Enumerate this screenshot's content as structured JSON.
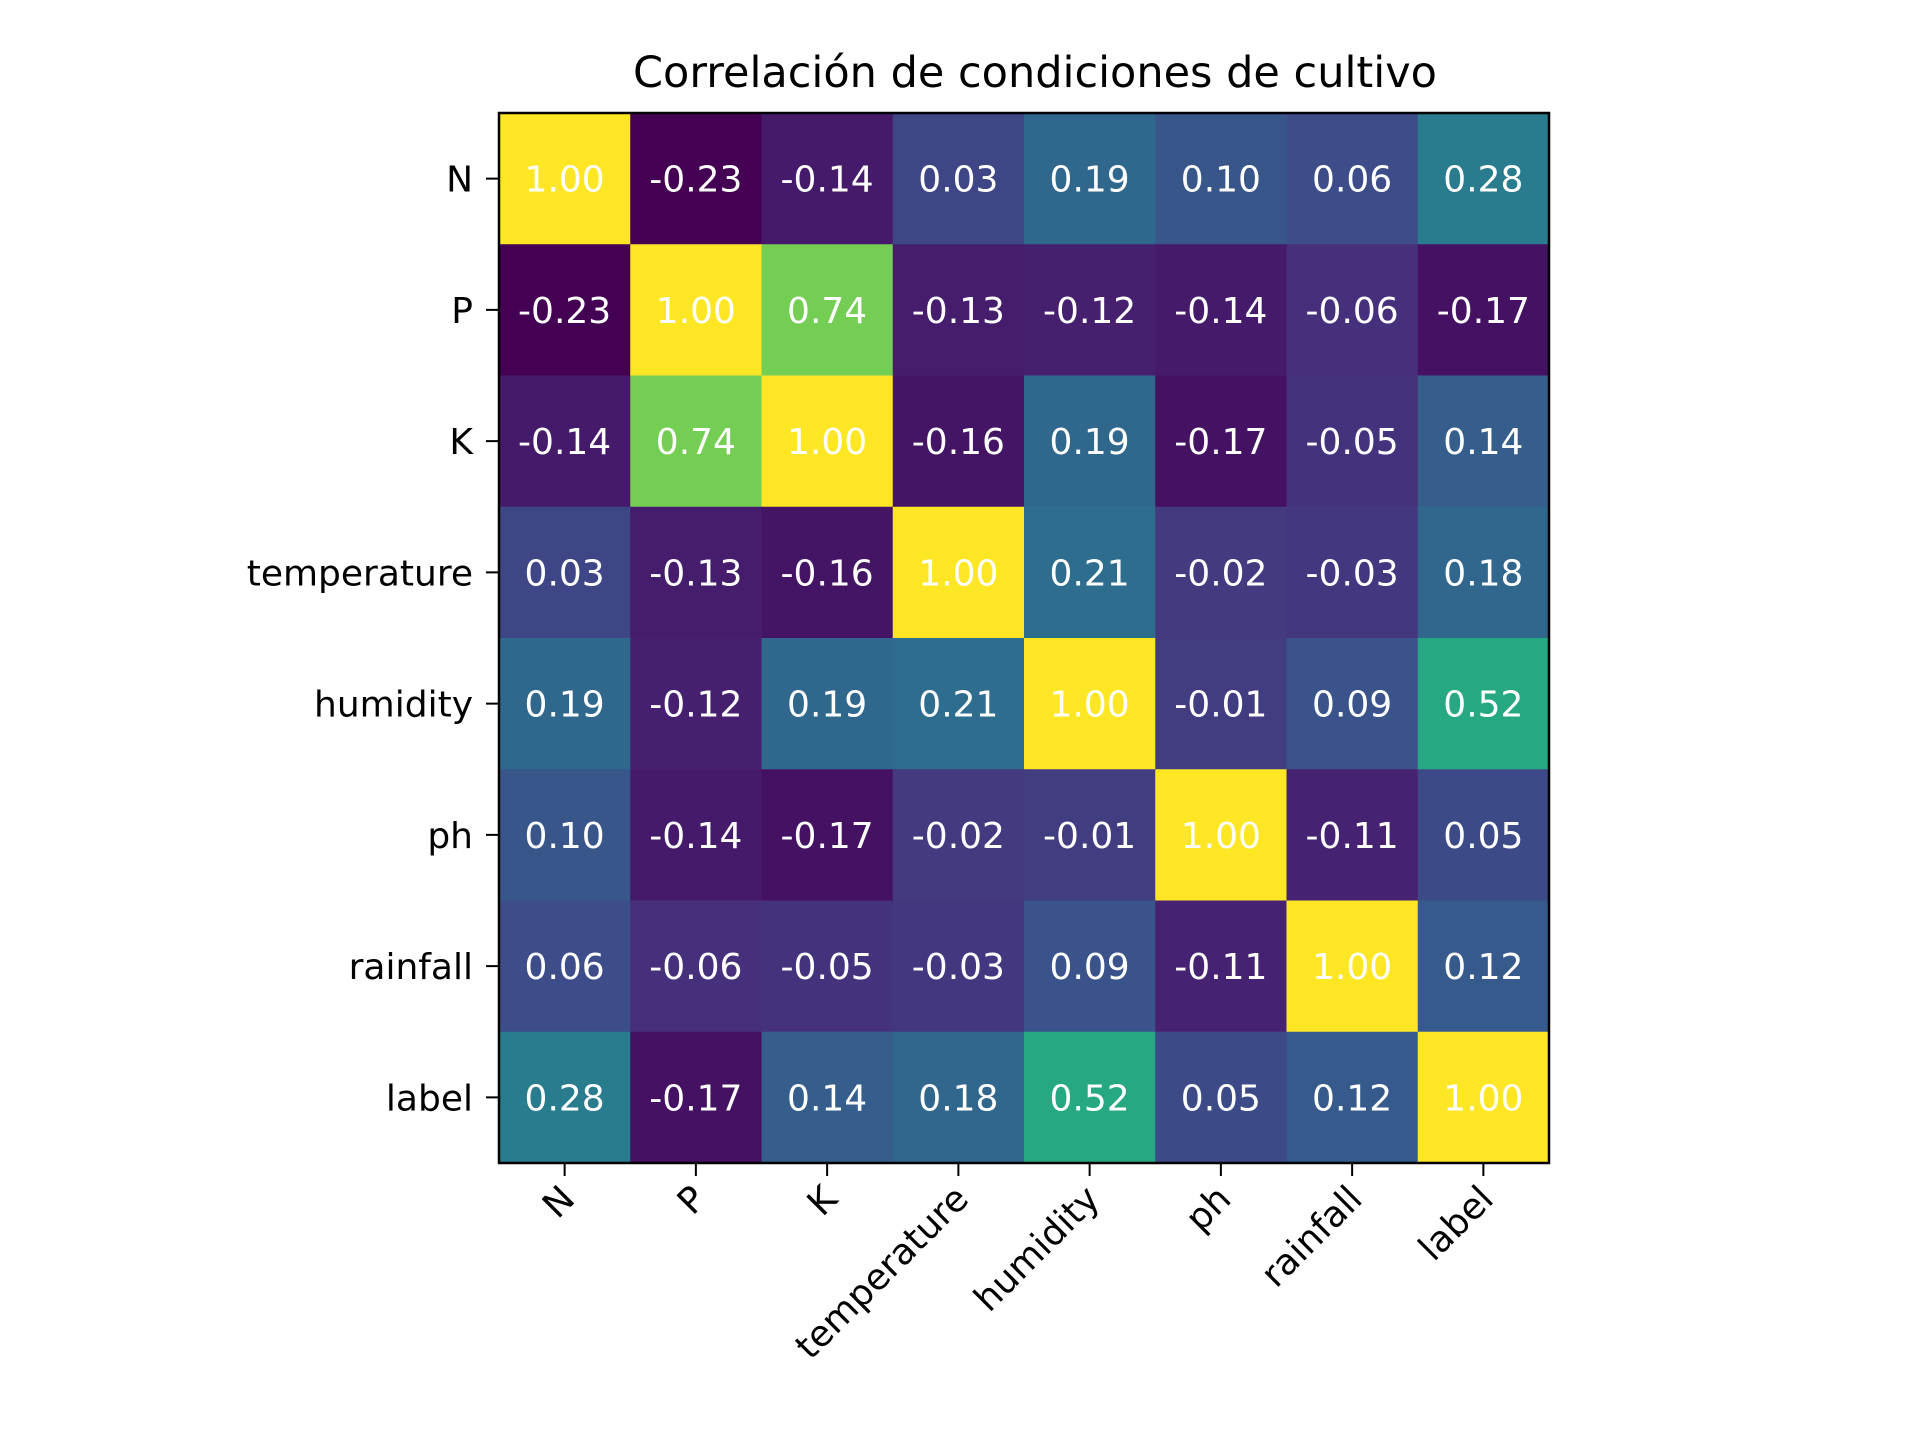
{
  "chart_data": {
    "type": "heatmap",
    "title": "Correlación de condiciones de cultivo",
    "xlabel": "",
    "ylabel": "",
    "x_categories": [
      "N",
      "P",
      "K",
      "temperature",
      "humidity",
      "ph",
      "rainfall",
      "label"
    ],
    "y_categories": [
      "N",
      "P",
      "K",
      "temperature",
      "humidity",
      "ph",
      "rainfall",
      "label"
    ],
    "values": [
      [
        1.0,
        -0.23,
        -0.14,
        0.03,
        0.19,
        0.1,
        0.06,
        0.28
      ],
      [
        -0.23,
        1.0,
        0.74,
        -0.13,
        -0.12,
        -0.14,
        -0.06,
        -0.17
      ],
      [
        -0.14,
        0.74,
        1.0,
        -0.16,
        0.19,
        -0.17,
        -0.05,
        0.14
      ],
      [
        0.03,
        -0.13,
        -0.16,
        1.0,
        0.21,
        -0.02,
        -0.03,
        0.18
      ],
      [
        0.19,
        -0.12,
        0.19,
        0.21,
        1.0,
        -0.01,
        0.09,
        0.52
      ],
      [
        0.1,
        -0.14,
        -0.17,
        -0.02,
        -0.01,
        1.0,
        -0.11,
        0.05
      ],
      [
        0.06,
        -0.06,
        -0.05,
        -0.03,
        0.09,
        -0.11,
        1.0,
        0.12
      ],
      [
        0.28,
        -0.17,
        0.14,
        0.18,
        0.52,
        0.05,
        0.12,
        1.0
      ]
    ],
    "value_format": "0.00",
    "colormap": "viridis",
    "color_range": [
      -0.23,
      1.0
    ],
    "cell_text_color": "#ffffff",
    "x_tick_rotation_deg": 45,
    "grid": false,
    "legend": "none"
  }
}
